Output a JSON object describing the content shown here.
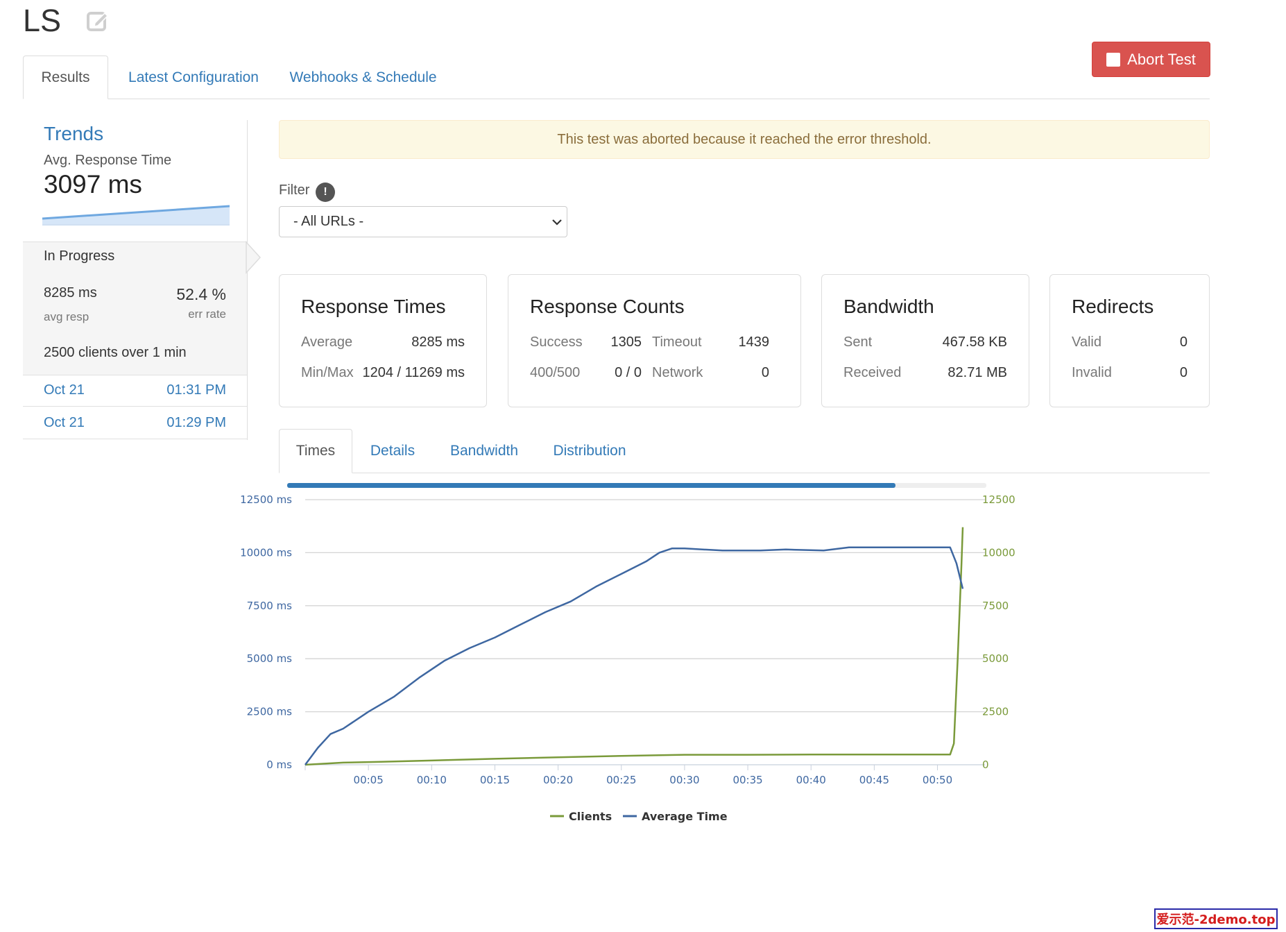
{
  "page": {
    "title": "LS",
    "abort_label": "Abort Test"
  },
  "tabs": [
    "Results",
    "Latest Configuration",
    "Webhooks & Schedule"
  ],
  "sidebar": {
    "trends_title": "Trends",
    "trend_label": "Avg. Response Time",
    "trend_value": "3097 ms",
    "in_progress": {
      "title": "In Progress",
      "avg_resp_value": "8285 ms",
      "avg_resp_label": "avg resp",
      "err_rate_value": "52.4 %",
      "err_rate_label": "err rate",
      "clients_text": "2500 clients over 1 min"
    },
    "history": [
      {
        "date": "Oct 21",
        "time": "01:31 PM"
      },
      {
        "date": "Oct 21",
        "time": "01:29 PM"
      }
    ]
  },
  "alert": "This test was aborted because it reached the error threshold.",
  "filter": {
    "label": "Filter",
    "info_symbol": "!",
    "selected": "- All URLs -"
  },
  "cards": {
    "response_times": {
      "title": "Response Times",
      "average_label": "Average",
      "average_value": "8285 ms",
      "minmax_label": "Min/Max",
      "minmax_value": "1204 / 11269 ms"
    },
    "response_counts": {
      "title": "Response Counts",
      "success_label": "Success",
      "success_value": "1305",
      "timeout_label": "Timeout",
      "timeout_value": "1439",
      "errors_label": "400/500",
      "errors_value": "0 / 0",
      "network_label": "Network",
      "network_value": "0"
    },
    "bandwidth": {
      "title": "Bandwidth",
      "sent_label": "Sent",
      "sent_value": "467.58 KB",
      "received_label": "Received",
      "received_value": "82.71 MB"
    },
    "redirects": {
      "title": "Redirects",
      "valid_label": "Valid",
      "valid_value": "0",
      "invalid_label": "Invalid",
      "invalid_value": "0"
    }
  },
  "chart_tabs": [
    "Times",
    "Details",
    "Bandwidth",
    "Distribution"
  ],
  "colors": {
    "clients": "#7a9a3a",
    "average_time": "#3e67a1",
    "progress": "#337ab7",
    "abort": "#d9534f"
  },
  "watermark": "爱示范-2demo.top",
  "chart_data": {
    "type": "line",
    "progress": 0.87,
    "x_ticks": [
      "00:05",
      "00:10",
      "00:15",
      "00:20",
      "00:25",
      "00:30",
      "00:35",
      "00:40",
      "00:45",
      "00:50"
    ],
    "x_range": [
      0,
      52
    ],
    "y_left": {
      "range": [
        0,
        12500
      ],
      "ticks": [
        0,
        2500,
        5000,
        7500,
        10000,
        12500
      ],
      "tick_labels": [
        "0 ms",
        "2500 ms",
        "5000 ms",
        "7500 ms",
        "10000 ms",
        "12500 ms"
      ]
    },
    "y_right": {
      "range": [
        0,
        12500
      ],
      "ticks": [
        0,
        2500,
        5000,
        7500,
        10000,
        12500
      ],
      "tick_labels": [
        "0",
        "2500",
        "5000",
        "7500",
        "10000",
        "12500"
      ]
    },
    "grid": true,
    "legend": "bottom-center",
    "series": [
      {
        "name": "Clients",
        "axis": "right",
        "points": [
          [
            0,
            0
          ],
          [
            3,
            100
          ],
          [
            6,
            140
          ],
          [
            10,
            200
          ],
          [
            15,
            280
          ],
          [
            20,
            350
          ],
          [
            25,
            420
          ],
          [
            28,
            450
          ],
          [
            30,
            470
          ],
          [
            35,
            470
          ],
          [
            40,
            480
          ],
          [
            45,
            480
          ],
          [
            50,
            480
          ],
          [
            51,
            480
          ],
          [
            51.3,
            1000
          ],
          [
            51.6,
            5000
          ],
          [
            51.9,
            9500
          ],
          [
            52,
            11200
          ]
        ]
      },
      {
        "name": "Average Time",
        "axis": "left",
        "points": [
          [
            0,
            0
          ],
          [
            1,
            800
          ],
          [
            2,
            1450
          ],
          [
            3,
            1700
          ],
          [
            5,
            2500
          ],
          [
            7,
            3200
          ],
          [
            9,
            4100
          ],
          [
            11,
            4900
          ],
          [
            13,
            5500
          ],
          [
            15,
            6000
          ],
          [
            17,
            6600
          ],
          [
            19,
            7200
          ],
          [
            21,
            7700
          ],
          [
            23,
            8400
          ],
          [
            25,
            9000
          ],
          [
            27,
            9600
          ],
          [
            28,
            10000
          ],
          [
            29,
            10200
          ],
          [
            30,
            10200
          ],
          [
            33,
            10100
          ],
          [
            36,
            10100
          ],
          [
            38,
            10150
          ],
          [
            41,
            10100
          ],
          [
            43,
            10250
          ],
          [
            47,
            10250
          ],
          [
            50,
            10250
          ],
          [
            51,
            10250
          ],
          [
            51.5,
            9500
          ],
          [
            52,
            8300
          ]
        ]
      }
    ]
  }
}
